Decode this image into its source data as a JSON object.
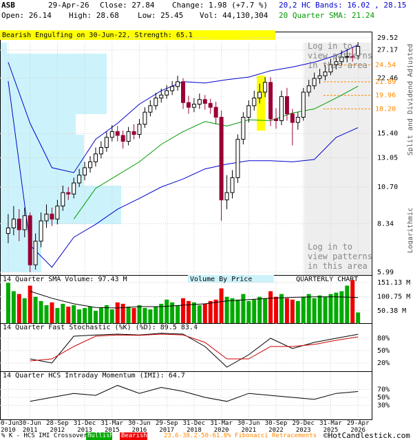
{
  "header": {
    "symbol": "ASB",
    "date": "29-Apr-26",
    "close": "Close: 27.84",
    "change": "Change: 1.98 (+7.7 %)",
    "open": "Open: 26.14",
    "high": "High: 28.68",
    "low": "Low: 25.45",
    "vol": "Vol: 44,130,304",
    "bands": "20,2 HC Bands: 16.02 , 28.15",
    "sma": "20 Quarter SMA: 21.24"
  },
  "footer": {
    "intro": "% K - HCS IMI Crossover,",
    "bullish": "Bullish",
    "bearish": "Bearish",
    "fib": "23.6-38.2-50-61.8% Fibonacci Retracements",
    "copyright": "©HotCandlestick.com"
  },
  "chart_data": [
    {
      "type": "candlestick",
      "annotation": "Bearish Engulfing on 30-Jun-22, Strength: 65.1",
      "note": "Log in to view patterns in this area",
      "side_label": "Split and Dividend Adjusted",
      "scale_label": "Logarithmic",
      "log_scale": true,
      "grid": true,
      "up_color": "#ffffff",
      "down_color": "#990033",
      "x": [
        0,
        1,
        2,
        3,
        4,
        5,
        6,
        7,
        8,
        9,
        10,
        11,
        12,
        13,
        14,
        15,
        16,
        17,
        18,
        19,
        20,
        21,
        22,
        23,
        24,
        25,
        26,
        27,
        28,
        29,
        30,
        31,
        32,
        33,
        34,
        35,
        36,
        37,
        38,
        39,
        40,
        41,
        42,
        43,
        44,
        45,
        46,
        47,
        48,
        49,
        50,
        51,
        52,
        53,
        54,
        55,
        56,
        57,
        58,
        59,
        60,
        61,
        62,
        63,
        64
      ],
      "xlim": [
        -1.5,
        66.5
      ],
      "xticks": [
        {
          "value": 0,
          "label": "30-Jun 2010"
        },
        {
          "value": 4,
          "label": "30-Jun 2011"
        },
        {
          "value": 9,
          "label": "28-Sep 2012"
        },
        {
          "value": 14,
          "label": "31-Dec 2013"
        },
        {
          "value": 19,
          "label": "31-Mar 2015"
        },
        {
          "value": 24,
          "label": "30-Jun 2016"
        },
        {
          "value": 29,
          "label": "29-Sep 2017"
        },
        {
          "value": 34,
          "label": "31-Dec 2018"
        },
        {
          "value": 39,
          "label": "31-Mar 2020"
        },
        {
          "value": 44,
          "label": "30-Jun 2021"
        },
        {
          "value": 49,
          "label": "30-Sep 2022"
        },
        {
          "value": 54,
          "label": "29-Dec 2023"
        },
        {
          "value": 59,
          "label": "31-Mar 2025"
        },
        {
          "value": 64,
          "label": "29-Apr 2026"
        }
      ],
      "open": [
        7.8,
        8.1,
        8.6,
        8.0,
        8.8,
        6.3,
        7.4,
        8.5,
        8.9,
        8.6,
        9.4,
        10.3,
        10.2,
        11.0,
        11.6,
        12.2,
        12.7,
        13.4,
        14.0,
        15.0,
        15.6,
        15.2,
        14.6,
        15.6,
        15.3,
        16.4,
        17.8,
        18.6,
        19.6,
        20.0,
        20.6,
        21.2,
        21.9,
        19.0,
        18.4,
        18.8,
        19.4,
        18.9,
        18.4,
        17.2,
        9.8,
        10.3,
        11.4,
        14.8,
        17.2,
        18.6,
        19.6,
        20.4,
        21.8,
        17.0,
        16.8,
        19.8,
        17.6,
        16.6,
        17.2,
        20.4,
        21.3,
        22.4,
        22.8,
        23.4,
        24.6,
        25.1,
        25.9,
        26.0,
        26.14
      ],
      "high": [
        8.9,
        9.4,
        9.2,
        9.3,
        9.0,
        7.8,
        9.0,
        9.5,
        9.3,
        9.8,
        10.8,
        10.7,
        11.4,
        12.1,
        12.7,
        13.2,
        14.0,
        14.6,
        15.6,
        16.3,
        16.2,
        15.7,
        16.1,
        16.4,
        17.0,
        18.4,
        19.3,
        20.3,
        20.9,
        21.4,
        22.0,
        22.8,
        22.4,
        19.9,
        19.6,
        20.2,
        20.0,
        19.5,
        19.1,
        18.0,
        11.6,
        12.0,
        15.3,
        17.8,
        19.3,
        20.6,
        21.6,
        22.6,
        22.6,
        18.3,
        20.6,
        21.0,
        18.2,
        17.8,
        21.0,
        22.2,
        23.3,
        23.9,
        24.5,
        25.6,
        26.3,
        27.1,
        27.4,
        27.6,
        28.68
      ],
      "low": [
        7.3,
        7.7,
        7.4,
        7.6,
        6.0,
        6.1,
        7.1,
        8.1,
        8.2,
        8.3,
        9.1,
        9.8,
        9.9,
        10.7,
        11.2,
        11.8,
        12.3,
        13.0,
        13.6,
        14.6,
        14.6,
        13.9,
        14.2,
        14.8,
        14.9,
        16.0,
        17.3,
        18.1,
        19.0,
        19.5,
        20.0,
        20.6,
        18.2,
        17.6,
        17.8,
        18.2,
        18.1,
        17.6,
        16.4,
        8.5,
        9.2,
        9.9,
        11.0,
        14.3,
        16.6,
        18.0,
        18.9,
        19.7,
        16.2,
        15.9,
        16.3,
        16.8,
        14.2,
        15.8,
        16.8,
        19.8,
        20.8,
        21.6,
        22.1,
        22.9,
        23.8,
        24.5,
        25.0,
        25.1,
        25.45
      ],
      "close": [
        8.1,
        8.6,
        8.0,
        8.8,
        6.3,
        7.4,
        8.5,
        8.9,
        8.6,
        9.4,
        10.3,
        10.2,
        11.0,
        11.6,
        12.2,
        12.7,
        13.4,
        14.0,
        15.0,
        15.6,
        15.2,
        14.6,
        15.6,
        15.3,
        16.4,
        17.8,
        18.6,
        19.6,
        20.0,
        20.6,
        21.2,
        21.9,
        19.0,
        18.4,
        18.8,
        19.4,
        18.9,
        18.4,
        17.2,
        9.8,
        10.3,
        11.4,
        14.8,
        17.2,
        18.6,
        19.6,
        20.4,
        21.8,
        17.0,
        16.8,
        19.8,
        17.6,
        16.6,
        17.2,
        20.4,
        21.3,
        22.4,
        22.8,
        23.4,
        24.6,
        25.1,
        25.9,
        26.0,
        25.9,
        27.84
      ],
      "lines": [
        {
          "color": "#0000cc",
          "x": [
            0,
            4,
            8,
            12,
            16,
            20,
            24,
            28,
            32,
            36,
            40,
            44,
            48,
            52,
            56,
            60,
            64
          ],
          "values": [
            25.0,
            16.5,
            12.2,
            11.8,
            14.8,
            16.5,
            18.8,
            20.6,
            21.9,
            21.7,
            22.2,
            22.6,
            23.6,
            24.2,
            25.0,
            26.2,
            28.15
          ]
        },
        {
          "color": "#0000cc",
          "x": [
            0,
            4,
            8,
            12,
            16,
            20,
            24,
            28,
            32,
            36,
            40,
            44,
            48,
            52,
            56,
            60,
            64
          ],
          "values": [
            22.0,
            7.2,
            6.2,
            7.6,
            8.3,
            9.2,
            9.9,
            10.7,
            11.3,
            12.1,
            12.5,
            12.8,
            12.8,
            12.7,
            12.9,
            15.0,
            16.02
          ]
        },
        {
          "color": "#009900",
          "x": [
            0,
            4,
            8,
            12,
            16,
            20,
            24,
            28,
            32,
            36,
            40,
            44,
            48,
            52,
            56,
            60,
            64
          ],
          "values": [
            null,
            null,
            null,
            8.6,
            10.6,
            11.6,
            12.7,
            14.3,
            15.6,
            16.7,
            16.2,
            16.9,
            16.8,
            17.7,
            18.2,
            19.6,
            21.24
          ]
        }
      ],
      "ylim": [
        5.88,
        30.79
      ],
      "yticks": [
        5.99,
        8.34,
        {
          "value": 10.7,
          "label": "10.70"
        },
        13.05,
        {
          "value": 15.4,
          "label": "15.40"
        },
        22.46,
        27.17,
        29.52
      ],
      "fib_color": "#ff8800",
      "fib_levels": [
        24.54,
        21.89,
        19.96,
        {
          "value": 18.2,
          "label": "18.20"
        }
      ]
    },
    {
      "type": "bar",
      "title": "14 Quarter SMA Volume: 97.43 M",
      "annotations": [
        "Volume By Price",
        "QUARTERLY CHART"
      ],
      "up_color": "#00aa00",
      "down_color": "#ee0000",
      "values": [
        150,
        120,
        110,
        95,
        140,
        100,
        85,
        70,
        80,
        60,
        75,
        65,
        70,
        55,
        60,
        65,
        50,
        60,
        70,
        55,
        80,
        75,
        65,
        60,
        70,
        60,
        55,
        65,
        75,
        90,
        80,
        70,
        95,
        85,
        80,
        70,
        75,
        85,
        90,
        130,
        100,
        95,
        90,
        110,
        85,
        90,
        100,
        95,
        120,
        100,
        110,
        95,
        90,
        85,
        100,
        110,
        95,
        105,
        100,
        110,
        115,
        120,
        140,
        160,
        44.13
      ],
      "sma": {
        "color": "#000000",
        "x": [
          0,
          4,
          8,
          12,
          16,
          20,
          24,
          28,
          32,
          36,
          40,
          44,
          48,
          52,
          56,
          60,
          64
        ],
        "values": [
          null,
          120,
          95,
          75,
          62,
          60,
          65,
          65,
          70,
          75,
          85,
          90,
          95,
          98,
          100,
          100,
          97.43
        ]
      },
      "ylim": [
        6,
        173
      ],
      "yticks": [
        {
          "value": 151.13,
          "label": "151.13 M"
        },
        {
          "value": 100.75,
          "label": "100.75 M"
        },
        {
          "value": 50.38,
          "label": "50.38 M"
        }
      ]
    },
    {
      "type": "line",
      "title": "14 Quarter Fast Stochastic (%K) (%D): 89.5  83.4",
      "series": [
        {
          "color": "#000000",
          "x": [
            0,
            4,
            8,
            12,
            16,
            20,
            24,
            28,
            32,
            36,
            40,
            44,
            48,
            52,
            56,
            60,
            64
          ],
          "values": [
            null,
            30,
            20,
            85,
            88,
            90,
            88,
            92,
            90,
            60,
            10,
            40,
            80,
            55,
            70,
            80,
            89.5
          ]
        },
        {
          "color": "#cc0000",
          "x": [
            0,
            4,
            8,
            12,
            16,
            20,
            24,
            28,
            32,
            36,
            40,
            44,
            48,
            52,
            56,
            60,
            64
          ],
          "values": [
            null,
            25,
            30,
            60,
            85,
            88,
            87,
            90,
            88,
            70,
            30,
            30,
            60,
            60,
            65,
            75,
            83.4
          ]
        }
      ],
      "ylim": [
        0,
        100
      ],
      "yticks": [
        {
          "value": 80,
          "label": "80%"
        },
        {
          "value": 50,
          "label": "50%"
        },
        {
          "value": 20,
          "label": "20%"
        }
      ]
    },
    {
      "type": "line",
      "title": "14 Quarter HCS Intraday Momentum (IMI): 64.7",
      "series": [
        {
          "color": "#000000",
          "x": [
            0,
            4,
            8,
            12,
            16,
            20,
            24,
            28,
            32,
            36,
            40,
            44,
            48,
            52,
            56,
            60,
            64
          ],
          "values": [
            null,
            40,
            50,
            60,
            55,
            80,
            60,
            75,
            65,
            50,
            40,
            60,
            55,
            50,
            45,
            60,
            64.7
          ]
        }
      ],
      "ylim": [
        0,
        100
      ],
      "yticks": [
        {
          "value": 70,
          "label": "70%"
        },
        {
          "value": 50,
          "label": "50%"
        },
        {
          "value": 30,
          "label": "30%"
        }
      ]
    }
  ]
}
